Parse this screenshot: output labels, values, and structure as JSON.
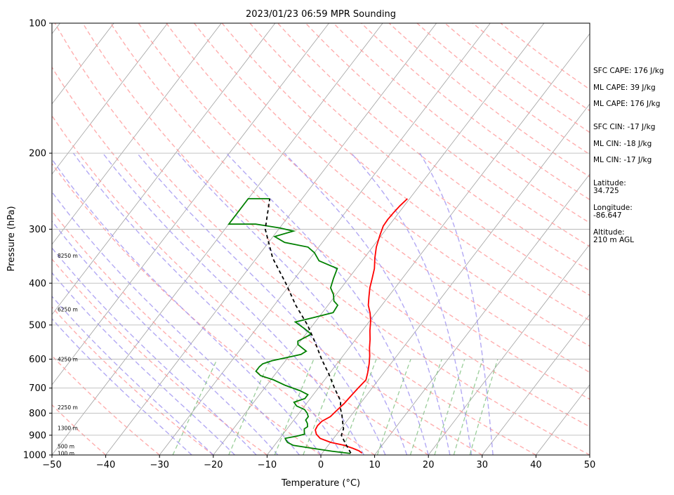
{
  "chart_data": {
    "type": "line",
    "title": "2023/01/23 06:59 MPR Sounding",
    "xlabel": "Temperature (°C)",
    "ylabel": "Pressure (hPa)",
    "xlim": [
      -50,
      50
    ],
    "ylim": [
      1000,
      100
    ],
    "y_scale": "log",
    "grid": true,
    "x_ticks": [
      -50,
      -40,
      -30,
      -20,
      -10,
      0,
      10,
      20,
      30,
      40,
      50
    ],
    "y_ticks": [
      1000,
      900,
      800,
      700,
      600,
      500,
      400,
      300,
      200,
      100
    ],
    "altitude_labels": [
      {
        "p": 990,
        "label": "100 m"
      },
      {
        "p": 955,
        "label": "500 m"
      },
      {
        "p": 865,
        "label": "1300 m"
      },
      {
        "p": 775,
        "label": "2250 m"
      },
      {
        "p": 600,
        "label": "4250 m"
      },
      {
        "p": 460,
        "label": "6250 m"
      },
      {
        "p": 345,
        "label": "8250 m"
      }
    ],
    "series": [
      {
        "key": "temperature",
        "color": "#ff0000",
        "points": [
          [
            7.4,
            990
          ],
          [
            6.5,
            978
          ],
          [
            5,
            965
          ],
          [
            3,
            950
          ],
          [
            0,
            935
          ],
          [
            -2.5,
            915
          ],
          [
            -3.8,
            895
          ],
          [
            -4.6,
            875
          ],
          [
            -4.8,
            855
          ],
          [
            -4.6,
            835
          ],
          [
            -3.7,
            815
          ],
          [
            -3.4,
            790
          ],
          [
            -3.0,
            760
          ],
          [
            -2.8,
            730
          ],
          [
            -2.6,
            700
          ],
          [
            -2.3,
            670
          ],
          [
            -3.0,
            645
          ],
          [
            -4.0,
            615
          ],
          [
            -5.0,
            590
          ],
          [
            -6.2,
            565
          ],
          [
            -7.3,
            540
          ],
          [
            -8.6,
            515
          ],
          [
            -9.8,
            490
          ],
          [
            -11.0,
            470
          ],
          [
            -12.5,
            450
          ],
          [
            -13.6,
            430
          ],
          [
            -14.7,
            410
          ],
          [
            -15.6,
            390
          ],
          [
            -16.6,
            370
          ],
          [
            -18.0,
            350
          ],
          [
            -19.3,
            330
          ],
          [
            -20.3,
            310
          ],
          [
            -21.0,
            295
          ],
          [
            -21.1,
            285
          ],
          [
            -21.0,
            275
          ],
          [
            -20.8,
            265
          ],
          [
            -20.4,
            255
          ]
        ]
      },
      {
        "key": "dewpoint",
        "color": "#008000",
        "points": [
          [
            5.3,
            992
          ],
          [
            1.5,
            980
          ],
          [
            -2.5,
            965
          ],
          [
            -6.5,
            950
          ],
          [
            -8.0,
            935
          ],
          [
            -8.8,
            920
          ],
          [
            -9.0,
            915
          ],
          [
            -7.2,
            905
          ],
          [
            -6.0,
            895
          ],
          [
            -6.5,
            880
          ],
          [
            -6.8,
            870
          ],
          [
            -6.5,
            860
          ],
          [
            -7.0,
            845
          ],
          [
            -7.8,
            830
          ],
          [
            -7.8,
            815
          ],
          [
            -8.5,
            800
          ],
          [
            -9.5,
            785
          ],
          [
            -11.5,
            770
          ],
          [
            -12.5,
            755
          ],
          [
            -11.0,
            740
          ],
          [
            -11.0,
            725
          ],
          [
            -13.0,
            710
          ],
          [
            -16.5,
            690
          ],
          [
            -19.5,
            670
          ],
          [
            -22.5,
            655
          ],
          [
            -24.0,
            640
          ],
          [
            -24.0,
            625
          ],
          [
            -23.8,
            615
          ],
          [
            -22.5,
            605
          ],
          [
            -18.0,
            585
          ],
          [
            -17.5,
            575
          ],
          [
            -20.0,
            555
          ],
          [
            -20.5,
            545
          ],
          [
            -19.0,
            525
          ],
          [
            -21.0,
            510
          ],
          [
            -23.7,
            492
          ],
          [
            -20.8,
            480
          ],
          [
            -18.0,
            468
          ],
          [
            -18.2,
            450
          ],
          [
            -19.5,
            440
          ],
          [
            -20.5,
            425
          ],
          [
            -22.0,
            410
          ],
          [
            -22.8,
            390
          ],
          [
            -23.5,
            370
          ],
          [
            -25.0,
            365
          ],
          [
            -28.0,
            355
          ],
          [
            -30.0,
            340
          ],
          [
            -32.0,
            330
          ],
          [
            -37.0,
            322
          ],
          [
            -39.7,
            312
          ],
          [
            -37.0,
            303
          ],
          [
            -40.0,
            298
          ],
          [
            -45.0,
            292
          ],
          [
            -50.0,
            292
          ],
          [
            -50.0,
            255
          ],
          [
            -46.0,
            255
          ]
        ]
      },
      {
        "key": "parcel",
        "color": "#000000",
        "points": [
          [
            5.3,
            990
          ],
          [
            3.4,
            950
          ],
          [
            2.2,
            925
          ],
          [
            1.0,
            900
          ],
          [
            0.5,
            870
          ],
          [
            -0.6,
            840
          ],
          [
            -1.7,
            810
          ],
          [
            -3.0,
            780
          ],
          [
            -4.0,
            750
          ],
          [
            -7.0,
            700
          ],
          [
            -10.0,
            650
          ],
          [
            -13.5,
            600
          ],
          [
            -17.0,
            550
          ],
          [
            -21.0,
            500
          ],
          [
            -26.0,
            450
          ],
          [
            -31.0,
            400
          ],
          [
            -37.0,
            350
          ],
          [
            -42.5,
            300
          ],
          [
            -46.0,
            255
          ]
        ]
      }
    ]
  },
  "side_panel": {
    "sfc_cape": "SFC CAPE: 176 J/kg",
    "ml_cape": "ML CAPE: 39 J/kg",
    "mu_cape": "ML CAPE: 176 J/kg",
    "sfc_cin": "SFC CIN: -17 J/kg",
    "ml_cin": "ML CIN: -18 J/kg",
    "mu_cin": "ML CIN: -17 J/kg",
    "latitude_label": "Latitude:",
    "latitude_value": "34.725",
    "longitude_label": "Longitude:",
    "longitude_value": "-86.647",
    "altitude_label": "Altitude:",
    "altitude_value": "210 m AGL"
  },
  "colors": {
    "isotherm": "#a0a0a0",
    "dry_adiabat": "#ff9a9a",
    "moist_adiabat": "#9a8cf0",
    "mixing_ratio": "#80c080"
  }
}
